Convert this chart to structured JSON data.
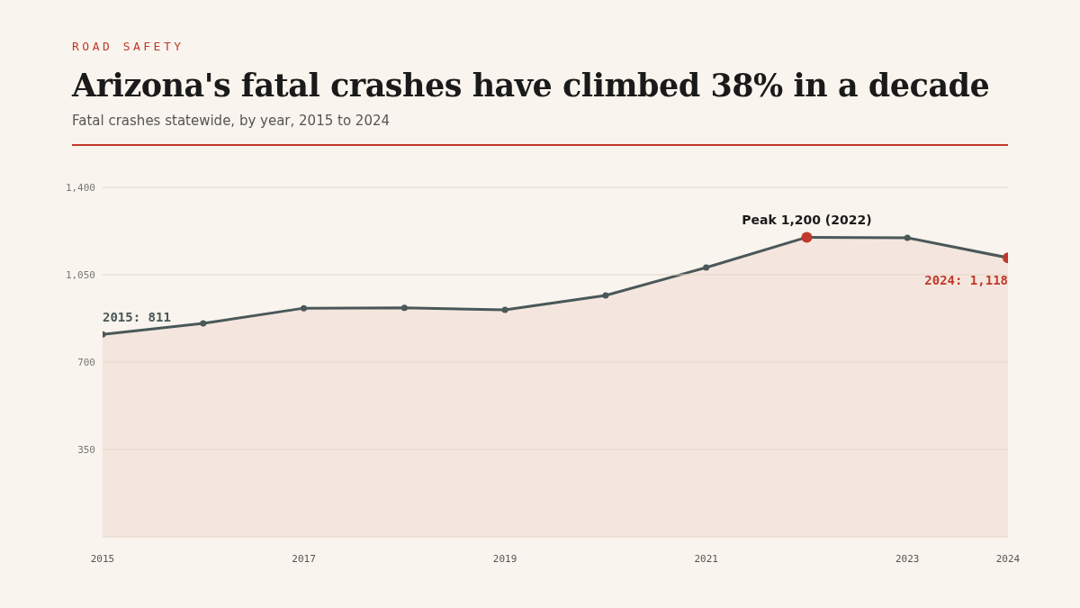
{
  "chart_data": {
    "type": "area",
    "title": "Arizona's fatal crashes have climbed 38% in a decade",
    "subtitle": "Fatal crashes statewide, by year, 2015 to 2024",
    "x": [
      2015,
      2016,
      2017,
      2018,
      2019,
      2020,
      2021,
      2022,
      2023,
      2024
    ],
    "series": [
      {
        "color": "#4a5859",
        "values": [
          811,
          855,
          916,
          917,
          909,
          967,
          1079,
          1200,
          1198,
          1118
        ],
        "colors": [
          "#4a5859",
          "#4a5859",
          "#4a5859",
          "#4a5859",
          "#4a5859",
          "#4a5859",
          "#4a5859",
          "#c0392b",
          "#4a5859",
          "#c0392b"
        ]
      }
    ],
    "xlim": [
      2015,
      2024
    ],
    "xticks": [
      2015,
      2017,
      2019,
      2021,
      2023,
      2024
    ],
    "ylim": [
      0,
      1400
    ],
    "yticks": [
      {
        "value": 0,
        "label": null
      },
      {
        "value": 350,
        "label": "350"
      },
      {
        "value": 700,
        "label": "700"
      },
      {
        "value": 1050,
        "label": "1,050"
      },
      {
        "value": 1400,
        "label": "1,400"
      }
    ],
    "grid": "y",
    "marker": "circle",
    "line_style": "solid",
    "legend": false,
    "annotations": [
      "ROAD SAFETY",
      {
        "text": "2015: 811",
        "x": 2015,
        "y": 811
      },
      {
        "text": "Peak 1,200 (2022)",
        "x": 2022,
        "y": 1200
      },
      {
        "text": "2024: 1,118",
        "x": 2024,
        "y": 1118
      }
    ]
  }
}
